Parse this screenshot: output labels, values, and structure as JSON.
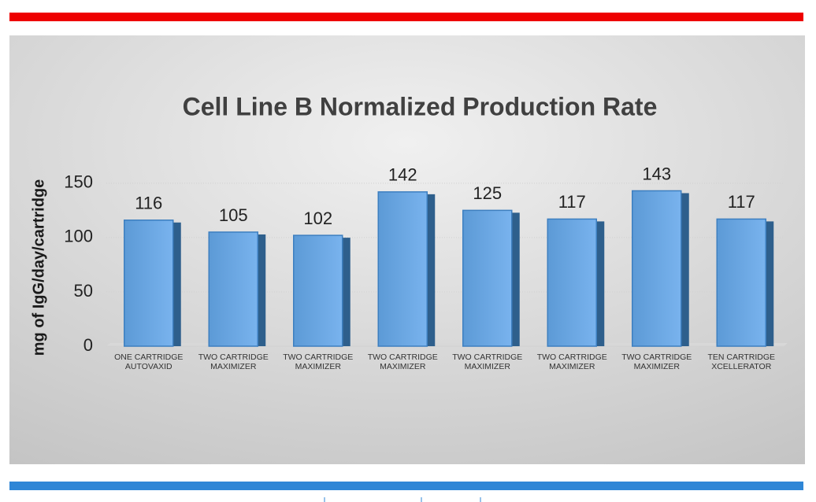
{
  "chart_data": {
    "type": "bar",
    "title": "Cell Line B Normalized Production Rate",
    "y_label": "mg of IgG/day/cartridge",
    "categories": [
      "ONE CARTRIDGE\nAUTOVAXID",
      "TWO CARTRIDGE\nMAXIMIZER",
      "TWO CARTRIDGE\nMAXIMIZER",
      "TWO CARTRIDGE\nMAXIMIZER",
      "TWO CARTRIDGE\nMAXIMIZER",
      "TWO CARTRIDGE\nMAXIMIZER",
      "TWO CARTRIDGE\nMAXIMIZER",
      "TEN CARTRIDGE\nXCELLERATOR"
    ],
    "values": [
      116,
      105,
      102,
      142,
      125,
      117,
      143,
      117
    ],
    "color": "#5b9bd5",
    "ylim": [
      0,
      160
    ],
    "yticks": [
      0,
      50,
      100,
      150
    ],
    "grid": true
  }
}
